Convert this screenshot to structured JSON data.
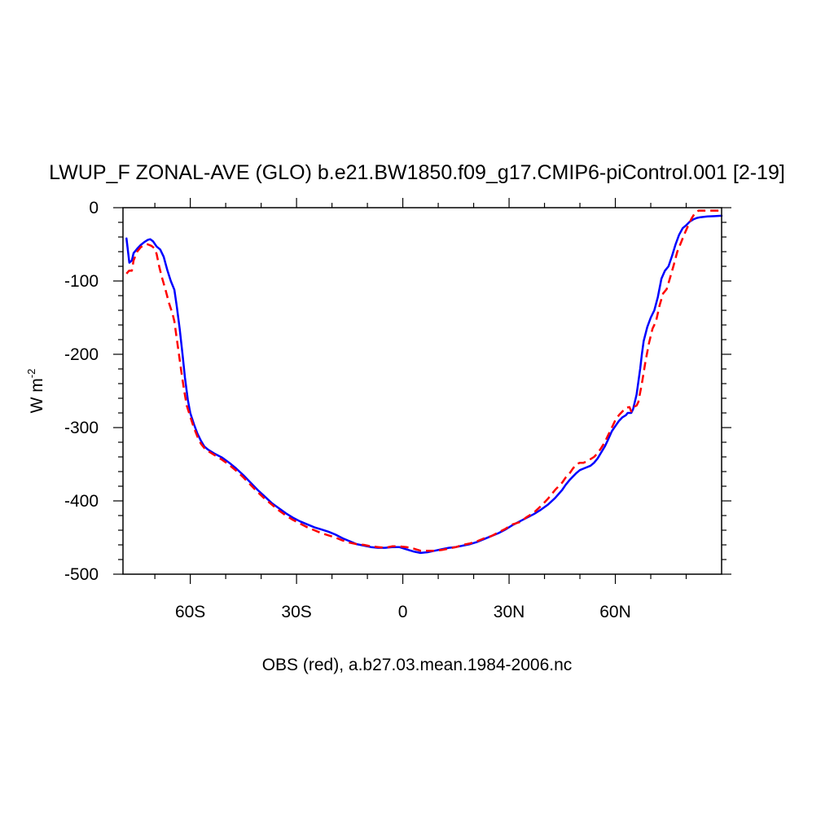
{
  "chart_data": {
    "type": "line",
    "title": "LWUP_F ZONAL-AVE (GLO) b.e21.BW1850.f09_g17.CMIP6-piControl.001 [2-19]",
    "xlabel": "OBS (red), a.b27.03.mean.1984-2006.nc",
    "ylabel": "W m",
    "ylabel_sup": "-2",
    "xlim": [
      -79,
      90
    ],
    "ylim": [
      -500,
      0
    ],
    "xticks": [
      {
        "value": -60,
        "label": "60S"
      },
      {
        "value": -30,
        "label": "30S"
      },
      {
        "value": 0,
        "label": "0"
      },
      {
        "value": 30,
        "label": "30N"
      },
      {
        "value": 60,
        "label": "60N"
      }
    ],
    "yticks": [
      {
        "value": 0,
        "label": "0"
      },
      {
        "value": -100,
        "label": "-100"
      },
      {
        "value": -200,
        "label": "-200"
      },
      {
        "value": -300,
        "label": "-300"
      },
      {
        "value": -400,
        "label": "-400"
      },
      {
        "value": -500,
        "label": "-500"
      }
    ],
    "grid": false,
    "series": [
      {
        "color": "#0000ff",
        "dash": "solid",
        "points": [
          [
            -78,
            -42
          ],
          [
            -77.2,
            -75
          ],
          [
            -76.5,
            -72
          ],
          [
            -76,
            -62
          ],
          [
            -75,
            -56
          ],
          [
            -74,
            -51
          ],
          [
            -73,
            -47
          ],
          [
            -72,
            -44
          ],
          [
            -71.3,
            -43
          ],
          [
            -70.5,
            -46
          ],
          [
            -69.5,
            -53
          ],
          [
            -68.5,
            -57
          ],
          [
            -67.5,
            -67
          ],
          [
            -66.5,
            -85
          ],
          [
            -65.5,
            -100
          ],
          [
            -64.5,
            -112
          ],
          [
            -63.8,
            -135
          ],
          [
            -63,
            -165
          ],
          [
            -62.2,
            -200
          ],
          [
            -61.5,
            -232
          ],
          [
            -60.7,
            -262
          ],
          [
            -60,
            -280
          ],
          [
            -59,
            -295
          ],
          [
            -58,
            -308
          ],
          [
            -57,
            -318
          ],
          [
            -56,
            -326
          ],
          [
            -55,
            -330
          ],
          [
            -53,
            -336
          ],
          [
            -51,
            -341
          ],
          [
            -49,
            -348
          ],
          [
            -47,
            -356
          ],
          [
            -45,
            -365
          ],
          [
            -43,
            -375
          ],
          [
            -41,
            -385
          ],
          [
            -39,
            -394
          ],
          [
            -37,
            -403
          ],
          [
            -35,
            -410
          ],
          [
            -33,
            -417
          ],
          [
            -31,
            -423
          ],
          [
            -29,
            -428
          ],
          [
            -27,
            -432
          ],
          [
            -25,
            -436
          ],
          [
            -23,
            -439
          ],
          [
            -21,
            -442
          ],
          [
            -19,
            -446
          ],
          [
            -17,
            -451
          ],
          [
            -15,
            -455
          ],
          [
            -13,
            -459
          ],
          [
            -11,
            -461
          ],
          [
            -9,
            -463
          ],
          [
            -7,
            -464
          ],
          [
            -5,
            -464
          ],
          [
            -3,
            -463
          ],
          [
            -1,
            -463
          ],
          [
            1,
            -466
          ],
          [
            3,
            -469
          ],
          [
            5,
            -471
          ],
          [
            7,
            -470
          ],
          [
            9,
            -468
          ],
          [
            11,
            -466
          ],
          [
            13,
            -464
          ],
          [
            15,
            -463
          ],
          [
            17,
            -461
          ],
          [
            19,
            -459
          ],
          [
            21,
            -456
          ],
          [
            23,
            -452
          ],
          [
            25,
            -448
          ],
          [
            27,
            -444
          ],
          [
            29,
            -439
          ],
          [
            31,
            -433
          ],
          [
            33,
            -428
          ],
          [
            35,
            -423
          ],
          [
            37,
            -418
          ],
          [
            39,
            -412
          ],
          [
            41,
            -405
          ],
          [
            43,
            -396
          ],
          [
            45,
            -385
          ],
          [
            46,
            -378
          ],
          [
            47,
            -372
          ],
          [
            48,
            -367
          ],
          [
            49,
            -362
          ],
          [
            50,
            -358
          ],
          [
            51,
            -356
          ],
          [
            52,
            -354
          ],
          [
            53,
            -352
          ],
          [
            54,
            -348
          ],
          [
            55,
            -342
          ],
          [
            56,
            -334
          ],
          [
            57,
            -326
          ],
          [
            58,
            -316
          ],
          [
            59,
            -305
          ],
          [
            60,
            -298
          ],
          [
            61,
            -291
          ],
          [
            62,
            -286
          ],
          [
            63,
            -283
          ],
          [
            63.5,
            -280
          ],
          [
            64.5,
            -280
          ],
          [
            65,
            -275
          ],
          [
            66,
            -255
          ],
          [
            67,
            -220
          ],
          [
            67.5,
            -200
          ],
          [
            68,
            -182
          ],
          [
            69,
            -163
          ],
          [
            70,
            -150
          ],
          [
            71,
            -140
          ],
          [
            72,
            -122
          ],
          [
            73,
            -97
          ],
          [
            74,
            -86
          ],
          [
            75,
            -80
          ],
          [
            76,
            -66
          ],
          [
            77,
            -50
          ],
          [
            78,
            -37
          ],
          [
            79,
            -28
          ],
          [
            80,
            -24
          ],
          [
            81,
            -19
          ],
          [
            82,
            -16
          ],
          [
            83,
            -14
          ],
          [
            84,
            -13
          ],
          [
            86,
            -12
          ],
          [
            88,
            -11.5
          ],
          [
            90,
            -11
          ]
        ]
      },
      {
        "color": "#ff0000",
        "dash": "dashed",
        "points": [
          [
            -78,
            -90
          ],
          [
            -77.3,
            -86
          ],
          [
            -76.5,
            -86
          ],
          [
            -76,
            -72
          ],
          [
            -75,
            -60
          ],
          [
            -74,
            -54
          ],
          [
            -73,
            -51
          ],
          [
            -72,
            -50
          ],
          [
            -71,
            -52
          ],
          [
            -70.2,
            -55
          ],
          [
            -69.5,
            -63
          ],
          [
            -68.8,
            -80
          ],
          [
            -68,
            -95
          ],
          [
            -67,
            -112
          ],
          [
            -66,
            -130
          ],
          [
            -65,
            -145
          ],
          [
            -64.5,
            -155
          ],
          [
            -64,
            -172
          ],
          [
            -63.2,
            -200
          ],
          [
            -62.5,
            -225
          ],
          [
            -61.7,
            -250
          ],
          [
            -61,
            -270
          ],
          [
            -60,
            -285
          ],
          [
            -59,
            -300
          ],
          [
            -58,
            -312
          ],
          [
            -57,
            -322
          ],
          [
            -56,
            -328
          ],
          [
            -55,
            -332
          ],
          [
            -53,
            -338
          ],
          [
            -51,
            -344
          ],
          [
            -49,
            -351
          ],
          [
            -47,
            -359
          ],
          [
            -45,
            -368
          ],
          [
            -43,
            -378
          ],
          [
            -41,
            -388
          ],
          [
            -39,
            -397
          ],
          [
            -37,
            -405
          ],
          [
            -35,
            -413
          ],
          [
            -33,
            -420
          ],
          [
            -31,
            -426
          ],
          [
            -29,
            -431
          ],
          [
            -27,
            -436
          ],
          [
            -25,
            -440
          ],
          [
            -23,
            -444
          ],
          [
            -21,
            -447
          ],
          [
            -19,
            -450
          ],
          [
            -17,
            -454
          ],
          [
            -15,
            -457
          ],
          [
            -13,
            -459
          ],
          [
            -11,
            -460
          ],
          [
            -9,
            -462
          ],
          [
            -7,
            -463
          ],
          [
            -5,
            -464
          ],
          [
            -3,
            -462
          ],
          [
            -1,
            -462
          ],
          [
            1,
            -463
          ],
          [
            3,
            -465
          ],
          [
            5,
            -468
          ],
          [
            7,
            -468
          ],
          [
            9,
            -468
          ],
          [
            11,
            -467
          ],
          [
            13,
            -465
          ],
          [
            15,
            -463
          ],
          [
            17,
            -460
          ],
          [
            19,
            -458
          ],
          [
            21,
            -455
          ],
          [
            23,
            -451
          ],
          [
            25,
            -448
          ],
          [
            27,
            -443
          ],
          [
            29,
            -438
          ],
          [
            31,
            -432
          ],
          [
            33,
            -429
          ],
          [
            35,
            -422
          ],
          [
            37,
            -416
          ],
          [
            39,
            -407
          ],
          [
            41,
            -397
          ],
          [
            43,
            -385
          ],
          [
            45,
            -375
          ],
          [
            46,
            -368
          ],
          [
            47,
            -363
          ],
          [
            48,
            -356
          ],
          [
            49,
            -350
          ],
          [
            50,
            -348
          ],
          [
            51,
            -348
          ],
          [
            52,
            -346
          ],
          [
            53,
            -343
          ],
          [
            54,
            -340
          ],
          [
            55,
            -335
          ],
          [
            56,
            -328
          ],
          [
            57,
            -320
          ],
          [
            58,
            -310
          ],
          [
            59,
            -300
          ],
          [
            60,
            -290
          ],
          [
            61,
            -283
          ],
          [
            62,
            -278
          ],
          [
            63,
            -273
          ],
          [
            64,
            -272
          ],
          [
            64.5,
            -278
          ],
          [
            65,
            -272
          ],
          [
            66,
            -270
          ],
          [
            66.5,
            -265
          ],
          [
            67.5,
            -240
          ],
          [
            68.5,
            -210
          ],
          [
            69.5,
            -185
          ],
          [
            70.5,
            -165
          ],
          [
            71.5,
            -155
          ],
          [
            72.5,
            -133
          ],
          [
            73.5,
            -117
          ],
          [
            74.5,
            -111
          ],
          [
            75.5,
            -95
          ],
          [
            76.5,
            -78
          ],
          [
            77.5,
            -60
          ],
          [
            78.5,
            -48
          ],
          [
            79.5,
            -36
          ],
          [
            80.5,
            -25
          ],
          [
            81.5,
            -15
          ],
          [
            82.5,
            -7
          ],
          [
            83.5,
            -4
          ],
          [
            85,
            -4
          ],
          [
            87,
            -4
          ],
          [
            90,
            -4
          ]
        ]
      }
    ]
  }
}
